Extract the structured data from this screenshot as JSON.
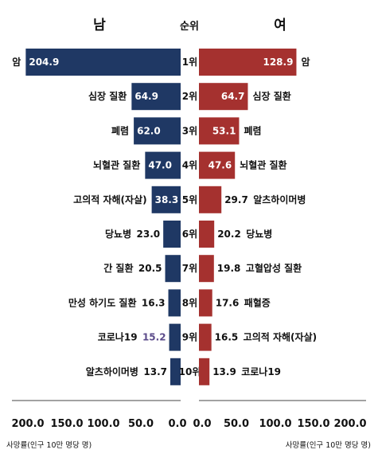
{
  "chart_data": {
    "type": "bar",
    "orientation": "horizontal-diverging",
    "rank_header": "순위",
    "axis_unit_label": "사망률(인구 10만 명당 명)",
    "xlim": [
      0,
      200
    ],
    "x_ticks": [
      "200.0",
      "150.0",
      "100.0",
      "50.0",
      "0.0"
    ],
    "x_ticks_right": [
      "0.0",
      "50.0",
      "100.0",
      "150.0",
      "200.0"
    ],
    "ranks": [
      "1위",
      "2위",
      "3위",
      "4위",
      "5위",
      "6위",
      "7위",
      "8위",
      "9위",
      "10위"
    ],
    "colors": {
      "male": "#1f3864",
      "female": "#a5312f",
      "covid_value": "#5b4b8a"
    },
    "series": [
      {
        "name": "남",
        "categories": [
          "암",
          "심장 질환",
          "폐렴",
          "뇌혈관 질환",
          "고의적 자해(자살)",
          "당뇨병",
          "간 질환",
          "만성 하기도 질환",
          "코로나19",
          "알츠하이머병"
        ],
        "values": [
          204.9,
          64.9,
          62.0,
          47.0,
          38.3,
          23.0,
          20.5,
          16.3,
          15.2,
          13.7
        ],
        "value_labels": [
          "204.9",
          "64.9",
          "62.0",
          "47.0",
          "38.3",
          "23.0",
          "20.5",
          "16.3",
          "15.2",
          "13.7"
        ]
      },
      {
        "name": "여",
        "categories": [
          "암",
          "심장 질환",
          "폐렴",
          "뇌혈관 질환",
          "알츠하이머병",
          "당뇨병",
          "고혈압성 질환",
          "패혈증",
          "고의적 자해(자살)",
          "코로나19"
        ],
        "values": [
          128.9,
          64.7,
          53.1,
          47.6,
          29.7,
          20.2,
          19.8,
          17.6,
          16.5,
          13.9
        ],
        "value_labels": [
          "128.9",
          "64.7",
          "53.1",
          "47.6",
          "29.7",
          "20.2",
          "19.8",
          "17.6",
          "16.5",
          "13.9"
        ]
      }
    ]
  }
}
